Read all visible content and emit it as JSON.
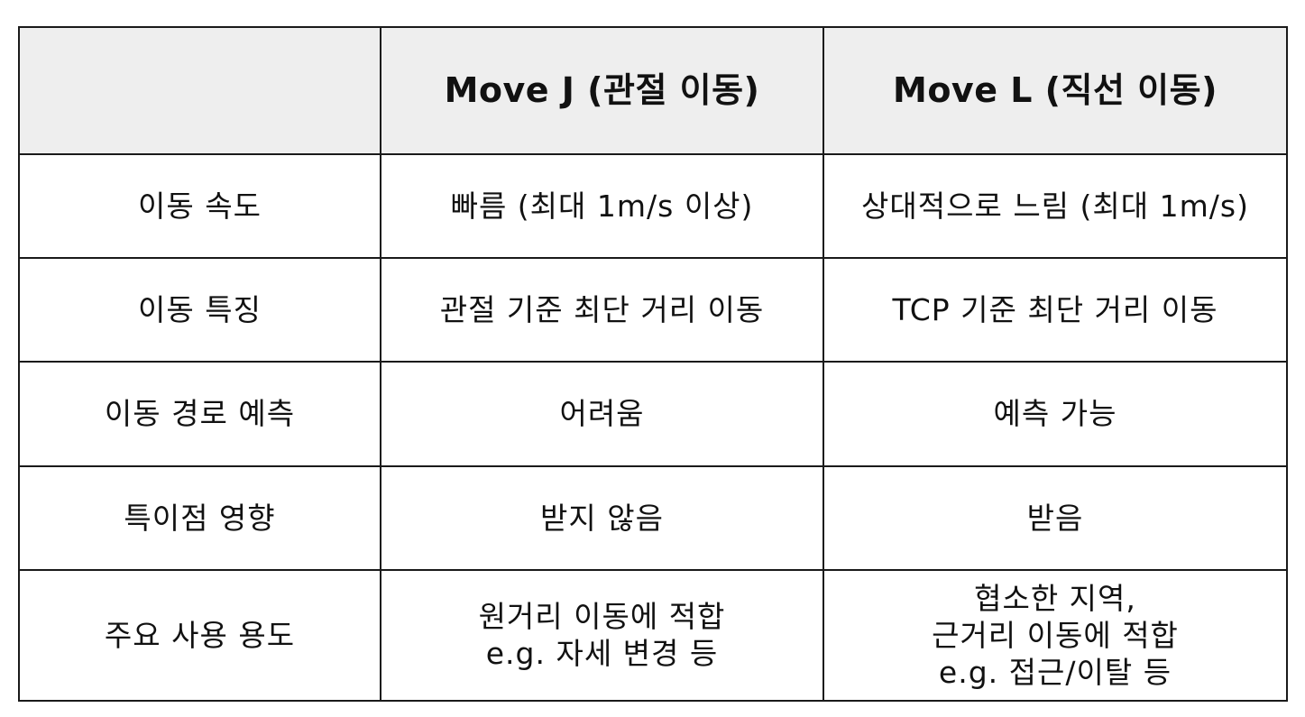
{
  "table": {
    "headers": [
      "",
      "Move J (관절 이동)",
      "Move L (직선 이동)"
    ],
    "rows": [
      {
        "label": "이동 속도",
        "move_j": [
          "빠름 (최대 1m/s 이상)"
        ],
        "move_l": [
          "상대적으로 느림 (최대 1m/s)"
        ]
      },
      {
        "label": "이동 특징",
        "move_j": [
          "관절 기준 최단 거리 이동"
        ],
        "move_l": [
          "TCP 기준 최단 거리 이동"
        ]
      },
      {
        "label": "이동 경로 예측",
        "move_j": [
          "어려움"
        ],
        "move_l": [
          "예측 가능"
        ]
      },
      {
        "label": "특이점 영향",
        "move_j": [
          "받지 않음"
        ],
        "move_l": [
          "받음"
        ]
      },
      {
        "label": "주요 사용 용도",
        "move_j": [
          "원거리 이동에 적합",
          "e.g. 자세 변경 등"
        ],
        "move_l": [
          "협소한 지역,",
          "근거리 이동에 적합",
          "e.g. 접근/이탈 등"
        ]
      }
    ]
  }
}
